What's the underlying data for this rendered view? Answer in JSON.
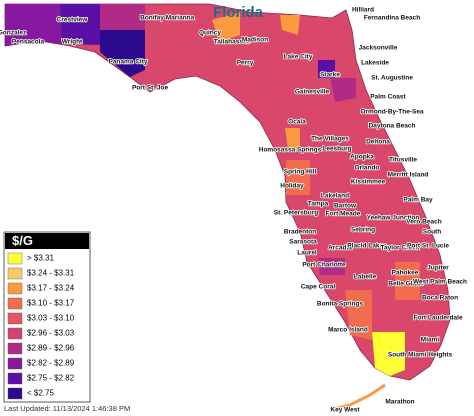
{
  "title": "Florida",
  "legend": {
    "title": "$/G",
    "items": [
      {
        "label": "> $3.31",
        "color": "#ffff33"
      },
      {
        "label": "$3.24 - $3.31",
        "color": "#fdc863"
      },
      {
        "label": "$3.17 - $3.24",
        "color": "#fb9a3f"
      },
      {
        "label": "$3.10 - $3.17",
        "color": "#f26c4f"
      },
      {
        "label": "$3.03 - $3.10",
        "color": "#e5565f"
      },
      {
        "label": "$2.96 - $3.03",
        "color": "#d4436e"
      },
      {
        "label": "$2.89 - $2.96",
        "color": "#b02b86"
      },
      {
        "label": "$2.82 - $2.89",
        "color": "#86199f"
      },
      {
        "label": "$2.75 - $2.82",
        "color": "#5a0fa6"
      },
      {
        "label": "< $2.75",
        "color": "#2b0a8c"
      }
    ]
  },
  "cities": [
    "Gonzalez",
    "Pensacola",
    "Crestview",
    "Wright",
    "Bonifay",
    "Marianna",
    "Panama City",
    "Port St. Joe",
    "Quincy",
    "Tallahassee",
    "Madison",
    "Perry",
    "Lake City",
    "Hilliard",
    "Fernandina Beach",
    "Jacksonville",
    "Lakeside",
    "Starke",
    "St. Augustine",
    "Gainesville",
    "Palm Coast",
    "Ormond-By-The-Sea",
    "Daytona Beach",
    "Ocala",
    "The Villages",
    "Deltona",
    "Homosassa Springs",
    "Leesburg",
    "Apopka",
    "Orlando",
    "Titusville",
    "Spring Hill",
    "Kissimmee",
    "Merritt Island",
    "Holiday",
    "Lakeland",
    "Bartow",
    "Palm Bay",
    "Tampa",
    "St. Petersburg",
    "Fort Meade",
    "Sebring",
    "Yeehaw Junction",
    "Vero Beach",
    "South",
    "Bradenton",
    "Sarasota",
    "Arcadia",
    "Placid Lakes",
    "Taylor Creek",
    "Port St. Lucie",
    "Laurel",
    "Port Charlotte",
    "Labelle",
    "Pahokee",
    "Jupiter",
    "Cape Coral",
    "Belle Glade",
    "West Palm Beach",
    "Bonita Springs",
    "Boca Raton",
    "Fort Lauderdale",
    "Marco Island",
    "Miami",
    "South Miami Heights",
    "Key West",
    "Marathon"
  ],
  "last_updated": "Last Updated: 11/13/2024 1:46:38 PM"
}
